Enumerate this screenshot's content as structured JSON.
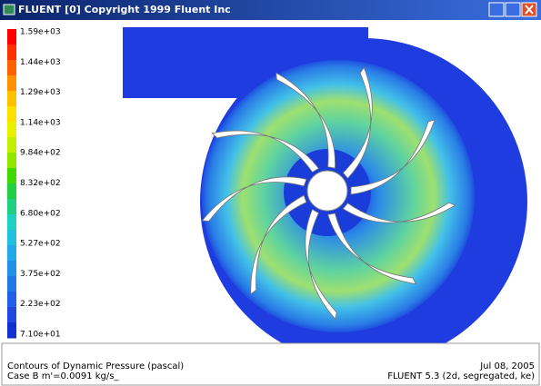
{
  "window": {
    "title": "FLUENT [0] Copyright 1999  Fluent Inc"
  },
  "legend": {
    "labels": [
      "1.59e+03",
      "1.44e+03",
      "1.29e+03",
      "1.14e+03",
      "9.84e+02",
      "8.32e+02",
      "6.80e+02",
      "5.27e+02",
      "3.75e+02",
      "2.23e+02",
      "7.10e+01"
    ]
  },
  "footer": {
    "left": [
      "Contours of Dynamic Pressure (pascal)",
      "Case B   m'=0.0091 kg/s_"
    ],
    "right": [
      "Jul 08, 2005",
      "FLUENT 5.3 (2d, segregated, ke)"
    ]
  }
}
